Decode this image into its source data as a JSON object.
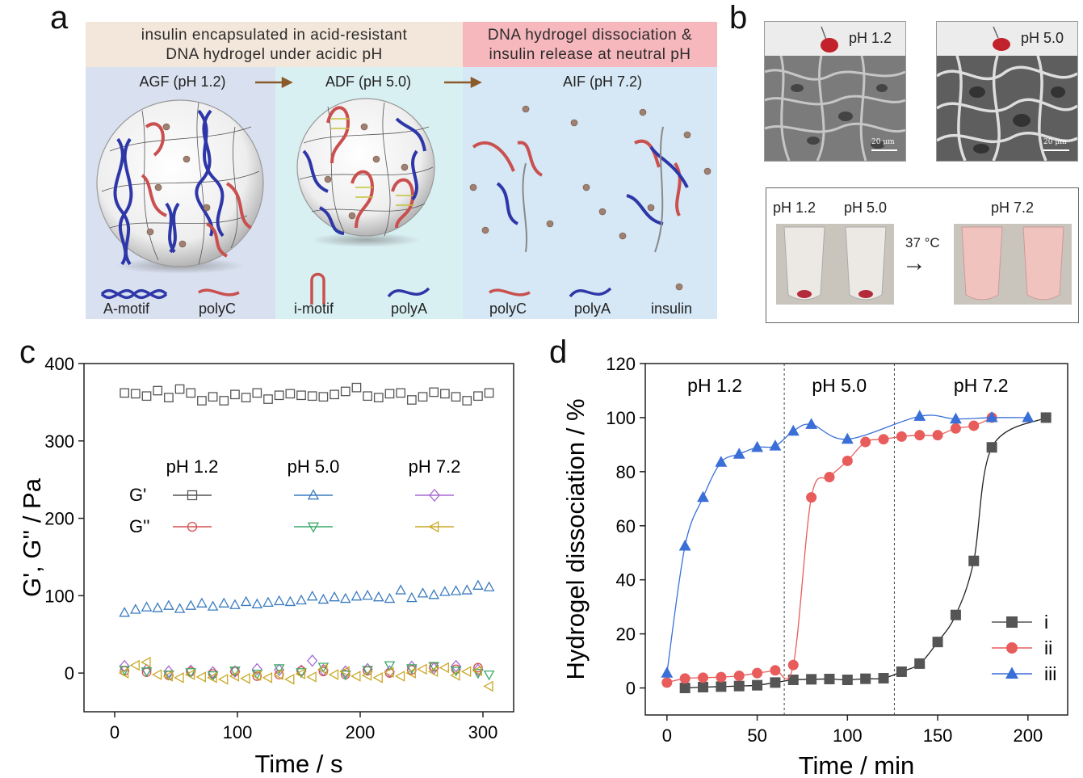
{
  "panel_labels": {
    "a": "a",
    "b": "b",
    "c": "c",
    "d": "d"
  },
  "panel_a": {
    "header_left": [
      "insulin encapsulated in acid-resistant",
      "DNA hydrogel under acidic pH"
    ],
    "header_right": [
      "DNA hydrogel dissociation &",
      "insulin release at neutral pH"
    ],
    "stage_agf": "AGF (pH 1.2)",
    "stage_adf": "ADF (pH 5.0)",
    "stage_aif": "AIF (pH 7.2)",
    "legend": [
      "A-motif",
      "polyC",
      "i-motif",
      "polyA",
      "polyC",
      "polyA",
      "insulin"
    ],
    "colors": {
      "header_left_bg": "#f3e6da",
      "header_right_bg": "#f6b7bd",
      "agf_bg": "#d9e1f0",
      "adf_bg": "#d9f0f3",
      "aif_bg": "#d6e8f5",
      "polyA": "#2e37a8",
      "polyC": "#c9504f",
      "insulin": "#a08070"
    }
  },
  "panel_b": {
    "sem_ph_1": "pH 1.2",
    "sem_ph_2": "pH 5.0",
    "scale_bar_1": "20 μm",
    "scale_bar_2": "20 μm",
    "tube_labels": [
      "pH 1.2",
      "pH 5.0",
      "pH 7.2"
    ],
    "temperature": "37 °C",
    "arrow": "→"
  },
  "chart_data": [
    {
      "type": "scatter",
      "panel": "c",
      "xlabel": "Time / s",
      "ylabel": "G', G'' / Pa",
      "xlim": [
        -25,
        325
      ],
      "ylim": [
        -50,
        400
      ],
      "xticks": [
        0,
        100,
        200,
        300
      ],
      "yticks": [
        0,
        100,
        200,
        300,
        400
      ],
      "legend": {
        "columns": [
          "pH 1.2",
          "pH 5.0",
          "pH 7.2"
        ],
        "rows": [
          "G'",
          "G''"
        ]
      },
      "series": [
        {
          "name": "G' pH 1.2",
          "marker": "square",
          "color": "#555555",
          "x": [
            8,
            17,
            26,
            35,
            44,
            53,
            62,
            71,
            80,
            89,
            98,
            107,
            116,
            125,
            134,
            143,
            152,
            161,
            170,
            179,
            188,
            197,
            206,
            215,
            224,
            233,
            242,
            251,
            260,
            269,
            278,
            287,
            296,
            305
          ],
          "values": [
            362,
            361,
            358,
            365,
            356,
            367,
            362,
            352,
            357,
            352,
            360,
            356,
            362,
            354,
            359,
            361,
            359,
            358,
            357,
            360,
            364,
            369,
            358,
            356,
            361,
            362,
            353,
            357,
            363,
            361,
            357,
            352,
            358,
            362
          ]
        },
        {
          "name": "G' pH 5.0",
          "marker": "triangle-up",
          "color": "#3a7bbf",
          "x": [
            8,
            17,
            26,
            35,
            44,
            53,
            62,
            71,
            80,
            89,
            98,
            107,
            116,
            125,
            134,
            143,
            152,
            161,
            170,
            179,
            188,
            197,
            206,
            215,
            224,
            233,
            242,
            251,
            260,
            269,
            278,
            287,
            296,
            305
          ],
          "values": [
            78,
            82,
            85,
            84,
            87,
            83,
            87,
            90,
            86,
            90,
            88,
            92,
            89,
            91,
            93,
            92,
            94,
            99,
            95,
            98,
            96,
            99,
            100,
            98,
            96,
            107,
            97,
            103,
            101,
            105,
            106,
            107,
            113,
            111
          ]
        },
        {
          "name": "G' pH 7.2",
          "marker": "diamond",
          "color": "#a66bd3",
          "x": [
            8,
            26,
            44,
            62,
            80,
            98,
            116,
            134,
            152,
            161,
            170,
            188,
            206,
            224,
            242,
            260,
            278,
            296
          ],
          "values": [
            9,
            4,
            2,
            3,
            1,
            2,
            5,
            4,
            3,
            16,
            4,
            2,
            5,
            2,
            8,
            6,
            9,
            4
          ]
        },
        {
          "name": "G'' pH 1.2",
          "marker": "circle",
          "color": "#d65050",
          "x": [
            8,
            26,
            44,
            62,
            80,
            98,
            116,
            134,
            152,
            170,
            188,
            206,
            224,
            242,
            260,
            278,
            296
          ],
          "values": [
            3,
            1,
            -3,
            2,
            -1,
            2,
            -4,
            -2,
            3,
            2,
            -2,
            3,
            0,
            4,
            8,
            5,
            7
          ]
        },
        {
          "name": "G'' pH 5.0",
          "marker": "triangle-down",
          "color": "#3aaa6a",
          "x": [
            8,
            26,
            44,
            62,
            80,
            98,
            116,
            134,
            152,
            170,
            188,
            206,
            224,
            242,
            260,
            278,
            296,
            305
          ],
          "values": [
            4,
            2,
            -2,
            1,
            -3,
            3,
            -1,
            6,
            1,
            8,
            -2,
            4,
            10,
            6,
            9,
            3,
            0,
            -2
          ]
        },
        {
          "name": "G'' pH 7.2",
          "marker": "triangle-left",
          "color": "#c9a827",
          "x": [
            8,
            17,
            26,
            35,
            44,
            53,
            62,
            71,
            80,
            89,
            98,
            107,
            116,
            125,
            134,
            143,
            152,
            161,
            170,
            179,
            188,
            197,
            206,
            215,
            224,
            233,
            242,
            251,
            260,
            269,
            278,
            287,
            296,
            305
          ],
          "values": [
            0,
            10,
            14,
            -2,
            -4,
            -6,
            -2,
            -5,
            -6,
            -8,
            -4,
            -7,
            -3,
            -6,
            -2,
            -8,
            -1,
            -5,
            5,
            -2,
            2,
            -4,
            -3,
            -6,
            1,
            -4,
            0,
            5,
            2,
            7,
            -3,
            2,
            3,
            -17
          ]
        }
      ]
    },
    {
      "type": "line",
      "panel": "d",
      "xlabel": "Time / min",
      "ylabel": "Hydrogel dissociation / %",
      "xlim": [
        -12,
        222
      ],
      "ylim": [
        -10,
        120
      ],
      "xticks": [
        0,
        50,
        100,
        150,
        200
      ],
      "yticks": [
        0,
        20,
        40,
        60,
        80,
        100,
        120
      ],
      "regions": [
        {
          "label": "pH 1.2",
          "from": -12,
          "to": 65
        },
        {
          "label": "pH 5.0",
          "from": 65,
          "to": 126
        },
        {
          "label": "pH 7.2",
          "from": 126,
          "to": 222
        }
      ],
      "dividers": [
        65,
        126
      ],
      "legend_position": "bottom-right",
      "series": [
        {
          "name": "i",
          "marker": "square",
          "color": "#555555",
          "x": [
            10,
            20,
            30,
            40,
            50,
            60,
            70,
            80,
            90,
            100,
            110,
            120,
            130,
            140,
            150,
            160,
            170,
            180,
            210
          ],
          "values": [
            0,
            0.3,
            0.5,
            0.7,
            1,
            2,
            3,
            3.2,
            3.3,
            3,
            3.4,
            3.6,
            6,
            9,
            17,
            27,
            47,
            89,
            100
          ]
        },
        {
          "name": "ii",
          "marker": "circle",
          "color": "#e85c5c",
          "x": [
            0,
            10,
            20,
            30,
            40,
            50,
            60,
            70,
            80,
            90,
            100,
            110,
            120,
            130,
            140,
            150,
            160,
            170,
            180
          ],
          "values": [
            2,
            3.5,
            3.8,
            4,
            4.5,
            5.5,
            6.5,
            8.5,
            70.5,
            78,
            84,
            91,
            92,
            93,
            93.5,
            93.5,
            96,
            97,
            100
          ]
        },
        {
          "name": "iii",
          "marker": "triangle-up",
          "color": "#3a6fd8",
          "x": [
            0,
            10,
            20,
            30,
            40,
            50,
            60,
            70,
            80,
            100,
            140,
            160,
            180,
            200
          ],
          "values": [
            5.5,
            52.5,
            70.5,
            83.5,
            86.5,
            89,
            89.5,
            95,
            97.5,
            92,
            100.5,
            99.5,
            100,
            100
          ]
        }
      ]
    }
  ]
}
